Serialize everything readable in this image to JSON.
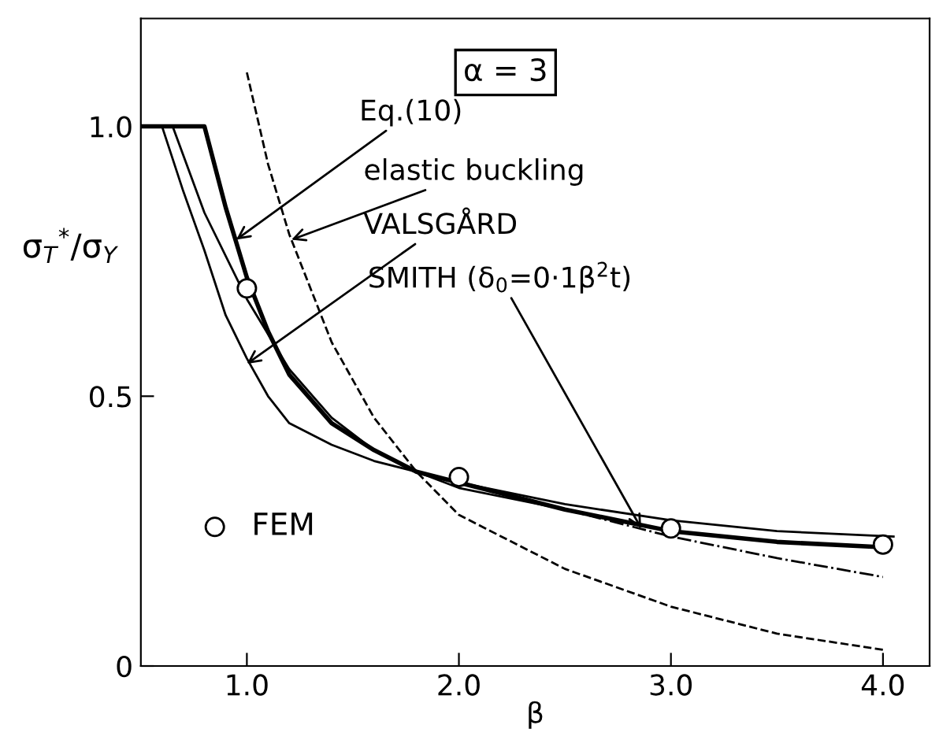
{
  "chart_data": {
    "type": "line",
    "xlabel": "β",
    "ylabel": "σ$_{T}$$^{*}$/σ$_{Y}$",
    "xlim": [
      0.5,
      4.22
    ],
    "ylim": [
      0,
      1.2
    ],
    "xticks": [
      {
        "value": 1.0,
        "label": "1.0"
      },
      {
        "value": 2.0,
        "label": "2.0"
      },
      {
        "value": 3.0,
        "label": "3.0"
      },
      {
        "value": 4.0,
        "label": "4.0"
      }
    ],
    "yticks": [
      0,
      {
        "value": 0.5,
        "label": "0.5"
      },
      {
        "value": 1.0,
        "label": "1.0"
      }
    ],
    "grid": false,
    "legend": "bottom left",
    "series": [
      {
        "color": "#000000",
        "line_style": "solid",
        "x": [
          0.5,
          0.8,
          0.9,
          1.0,
          1.1,
          1.2,
          1.4,
          1.6,
          1.8,
          2.0,
          2.5,
          3.0,
          3.5,
          4.0
        ],
        "values": [
          1.0,
          1.0,
          0.85,
          0.72,
          0.62,
          0.54,
          0.45,
          0.4,
          0.36,
          0.34,
          0.29,
          0.25,
          0.23,
          0.22
        ]
      },
      {
        "color": "#000000",
        "line_style": "dashed",
        "x": [
          1.0,
          1.1,
          1.2,
          1.4,
          1.6,
          1.8,
          2.0,
          2.5,
          3.0,
          3.5,
          4.0
        ],
        "values": [
          1.1,
          0.93,
          0.8,
          0.6,
          0.46,
          0.36,
          0.28,
          0.18,
          0.11,
          0.06,
          0.03
        ]
      },
      {
        "color": "#000000",
        "line_style": "solid",
        "x": [
          0.6,
          0.7,
          0.8,
          0.9,
          1.0,
          1.1,
          1.2,
          1.4,
          1.6,
          2.0,
          2.5,
          3.0,
          3.5,
          4.05
        ],
        "values": [
          1.0,
          0.88,
          0.77,
          0.65,
          0.57,
          0.5,
          0.45,
          0.41,
          0.38,
          0.34,
          0.3,
          0.27,
          0.25,
          0.24
        ]
      },
      {
        "color": "#000000",
        "line_style": "solid",
        "x": [
          0.65,
          0.8,
          1.0,
          1.2,
          1.4,
          1.6,
          1.8,
          2.0,
          2.5
        ],
        "values": [
          1.0,
          0.84,
          0.68,
          0.55,
          0.46,
          0.4,
          0.36,
          0.33,
          0.29
        ]
      },
      {
        "color": "#000000",
        "line_style": "dashdot",
        "x": [
          2.5,
          3.0,
          3.5,
          4.0
        ],
        "values": [
          0.29,
          0.24,
          0.2,
          0.165
        ]
      },
      {
        "type": "scatter",
        "name": "FEM",
        "color": "#000000",
        "marker": "circle",
        "x": [
          1.0,
          2.0,
          3.0,
          4.0
        ],
        "values": [
          0.7,
          0.35,
          0.255,
          0.225
        ]
      }
    ],
    "annotations": [
      "α = 3",
      {
        "text": "Eq.(10)",
        "x": 0.95,
        "y": 0.79
      },
      {
        "text": "elastic buckling",
        "x": 1.21,
        "y": 0.79
      },
      {
        "text": "VALSGÅRD",
        "x": 1.0,
        "y": 0.56
      },
      {
        "text": "SMITH (δ$_{0}$=0·1β$^{2}$t)",
        "x": 2.86,
        "y": 0.255
      }
    ]
  }
}
